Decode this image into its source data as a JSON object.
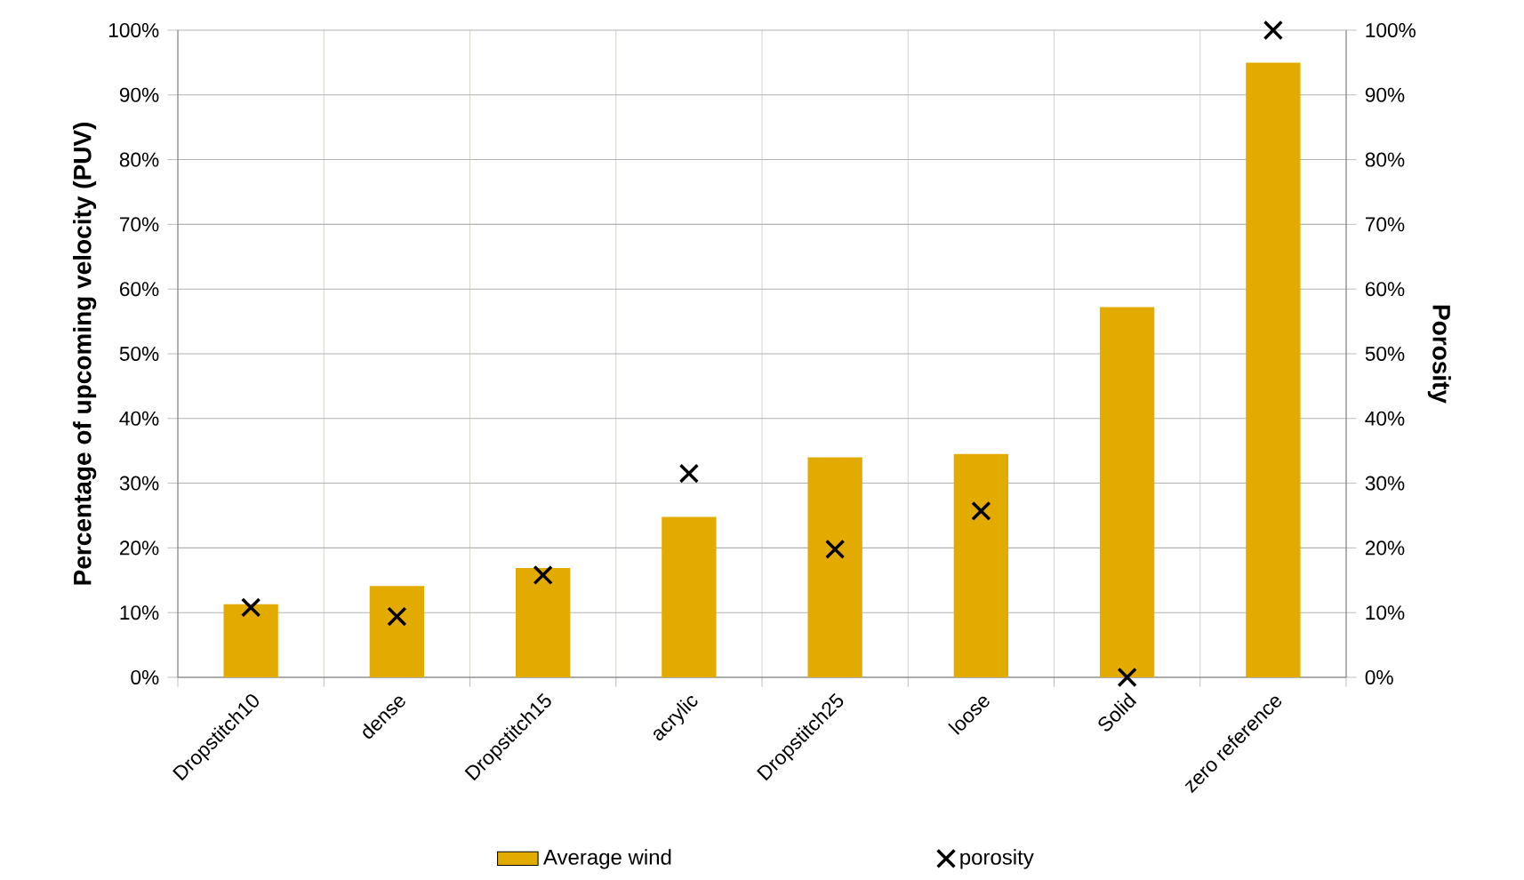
{
  "chart_data": {
    "type": "bar",
    "categories": [
      "Dropstitch10",
      "dense",
      "Dropstitch15",
      "acrylic",
      "Dropstitch25",
      "loose",
      "Solid",
      "zero reference"
    ],
    "series": [
      {
        "name": "Average wind",
        "color": "#e3ab00",
        "values": [
          11.3,
          14.1,
          16.9,
          24.8,
          34.0,
          34.5,
          57.2,
          95.0
        ]
      },
      {
        "name": "porosity",
        "type": "scatter",
        "axis": "y2",
        "color": "#000000",
        "marker": "cross",
        "values": [
          10.8,
          9.4,
          15.8,
          31.5,
          19.8,
          25.7,
          0,
          100
        ]
      }
    ],
    "ylabel": "Percentage of upcoming velocity (PUV)",
    "y2label": "Porosity",
    "ylim": [
      0,
      100
    ],
    "yticks": [
      {
        "value": 0,
        "label": "0%"
      },
      {
        "value": 10,
        "label": "10%"
      },
      {
        "value": 20,
        "label": "20%"
      },
      {
        "value": 30,
        "label": "30%"
      },
      {
        "value": 40,
        "label": "40%"
      },
      {
        "value": 50,
        "label": "50%"
      },
      {
        "value": 60,
        "label": "60%"
      },
      {
        "value": 70,
        "label": "70%"
      },
      {
        "value": 80,
        "label": "80%"
      },
      {
        "value": 90,
        "label": "90%"
      },
      {
        "value": 100,
        "label": "100%"
      }
    ],
    "y2lim": [
      0,
      100
    ],
    "y2ticks": [
      {
        "value": 0,
        "label": "0%"
      },
      {
        "value": 10,
        "label": "10%"
      },
      {
        "value": 20,
        "label": "20%"
      },
      {
        "value": 30,
        "label": "30%"
      },
      {
        "value": 40,
        "label": "40%"
      },
      {
        "value": 50,
        "label": "50%"
      },
      {
        "value": 60,
        "label": "60%"
      },
      {
        "value": 70,
        "label": "70%"
      },
      {
        "value": 80,
        "label": "80%"
      },
      {
        "value": 90,
        "label": "90%"
      },
      {
        "value": 100,
        "label": "100%"
      }
    ],
    "grid": true,
    "legend": "bottom"
  }
}
